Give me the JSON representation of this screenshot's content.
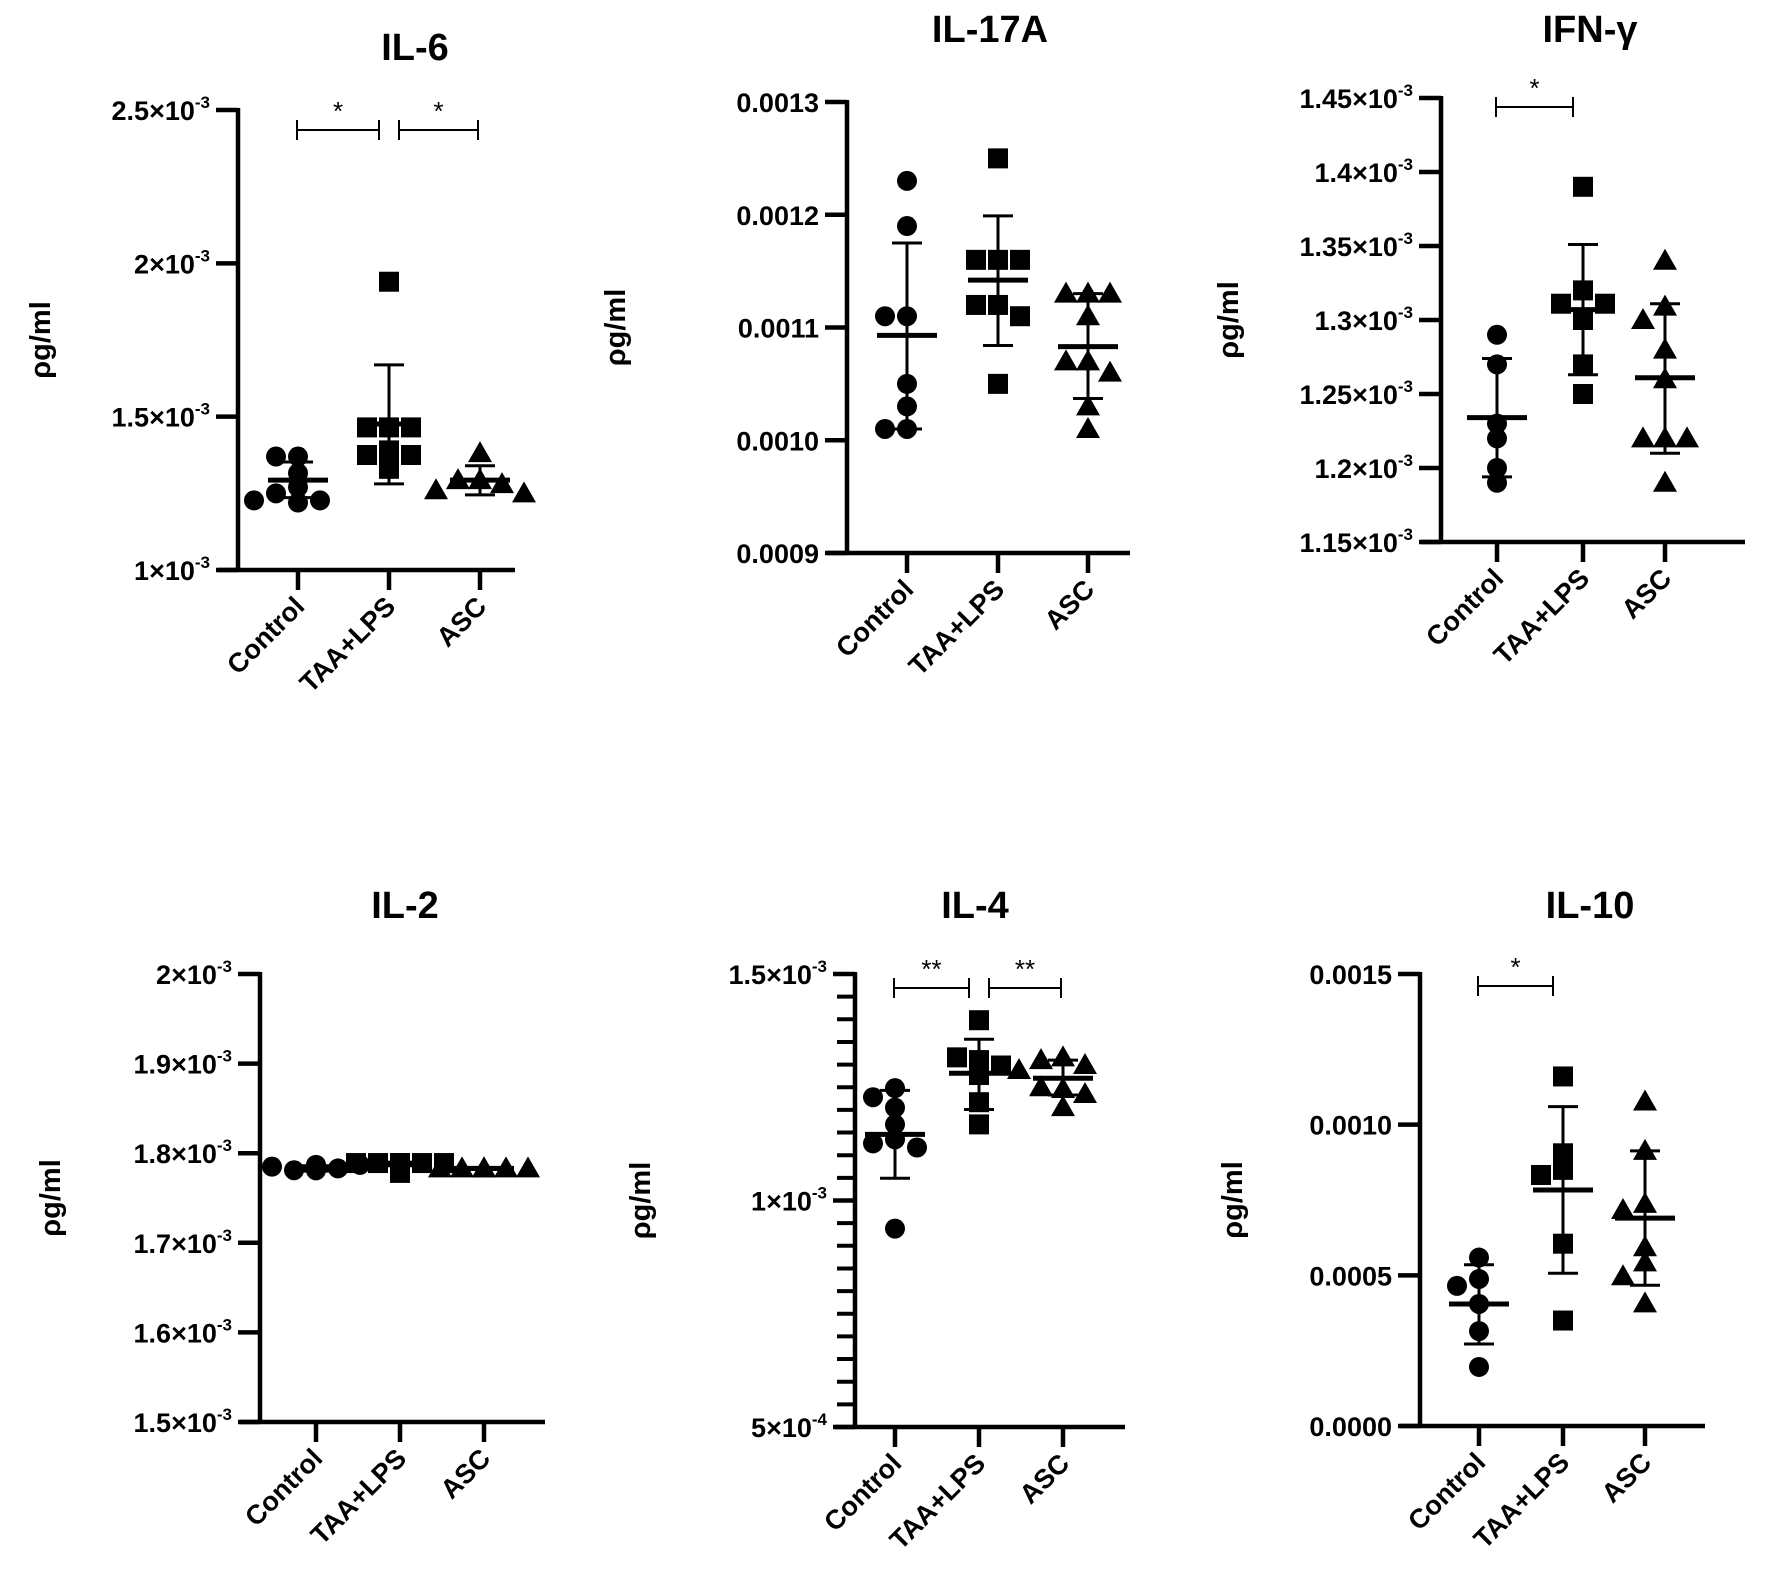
{
  "figure": {
    "groups": [
      "Control",
      "TAA+LPS",
      "ASC"
    ],
    "markers": [
      "circle",
      "square",
      "triangle"
    ],
    "ylabel": "ρg/ml"
  },
  "chart_data": [
    {
      "id": "il6",
      "type": "scatter",
      "title": "IL-6",
      "ylabel": "ρg/ml",
      "xlabel": "",
      "categories": [
        "Control",
        "TAA+LPS",
        "ASC"
      ],
      "ylim": [
        0.001,
        0.0025
      ],
      "yticks": [
        {
          "value": 0.001,
          "base": "1×10",
          "exp": "-3"
        },
        {
          "value": 0.0015,
          "base": "1.5×10",
          "exp": "-3"
        },
        {
          "value": 0.002,
          "base": "2×10",
          "exp": "-3"
        },
        {
          "value": 0.0025,
          "base": "2.5×10",
          "exp": "-3"
        }
      ],
      "minor_ticks": false,
      "series": [
        {
          "name": "Control",
          "marker": "circle",
          "values": [
            0.00137,
            0.00137,
            0.001316,
            0.00127,
            0.00125,
            0.001227,
            0.001227,
            0.00122
          ],
          "mean": 0.001293,
          "sd_upper": 0.001352,
          "sd_lower": 0.001236
        },
        {
          "name": "TAA+LPS",
          "marker": "square",
          "values": [
            0.00194,
            0.001465,
            0.001465,
            0.001465,
            0.00139,
            0.001375,
            0.001375,
            0.00133
          ],
          "mean": 0.001476,
          "sd_upper": 0.001669,
          "sd_lower": 0.001281
        },
        {
          "name": "ASC",
          "marker": "triangle",
          "values": [
            0.001381,
            0.001293,
            0.001293,
            0.00128,
            0.00126,
            0.00125
          ],
          "mean": 0.001293,
          "sd_upper": 0.00134,
          "sd_lower": 0.001245
        }
      ],
      "significance": [
        {
          "from": "Control",
          "to": "TAA+LPS",
          "label": "*"
        },
        {
          "from": "TAA+LPS",
          "to": "ASC",
          "label": "*"
        }
      ]
    },
    {
      "id": "il17a",
      "type": "scatter",
      "title": "IL-17A",
      "ylabel": "ρg/ml",
      "xlabel": "",
      "categories": [
        "Control",
        "TAA+LPS",
        "ASC"
      ],
      "ylim": [
        0.0009,
        0.0013
      ],
      "yticks": [
        {
          "value": 0.0009,
          "base": "0.0009",
          "exp": ""
        },
        {
          "value": 0.001,
          "base": "0.0010",
          "exp": ""
        },
        {
          "value": 0.0011,
          "base": "0.0011",
          "exp": ""
        },
        {
          "value": 0.0012,
          "base": "0.0012",
          "exp": ""
        },
        {
          "value": 0.0013,
          "base": "0.0013",
          "exp": ""
        }
      ],
      "minor_ticks": false,
      "series": [
        {
          "name": "Control",
          "marker": "circle",
          "values": [
            0.00123,
            0.00119,
            0.00111,
            0.00111,
            0.00105,
            0.00103,
            0.00101,
            0.00101
          ],
          "mean": 0.001093,
          "sd_upper": 0.001175,
          "sd_lower": 0.00101
        },
        {
          "name": "TAA+LPS",
          "marker": "square",
          "values": [
            0.00125,
            0.00116,
            0.00116,
            0.00116,
            0.00112,
            0.00112,
            0.00111,
            0.00105
          ],
          "mean": 0.001142,
          "sd_upper": 0.001199,
          "sd_lower": 0.001084
        },
        {
          "name": "ASC",
          "marker": "triangle",
          "values": [
            0.00113,
            0.00113,
            0.00113,
            0.00111,
            0.00107,
            0.00107,
            0.00106,
            0.00103,
            0.00101
          ],
          "mean": 0.001083,
          "sd_upper": 0.00113,
          "sd_lower": 0.001037
        }
      ],
      "significance": []
    },
    {
      "id": "ifng",
      "type": "scatter",
      "title": "IFN-γ",
      "ylabel": "ρg/ml",
      "xlabel": "",
      "categories": [
        "Control",
        "TAA+LPS",
        "ASC"
      ],
      "ylim": [
        0.00115,
        0.00145
      ],
      "yticks": [
        {
          "value": 0.00115,
          "base": "1.15×10",
          "exp": "-3"
        },
        {
          "value": 0.0012,
          "base": "1.2×10",
          "exp": "-3"
        },
        {
          "value": 0.00125,
          "base": "1.25×10",
          "exp": "-3"
        },
        {
          "value": 0.0013,
          "base": "1.3×10",
          "exp": "-3"
        },
        {
          "value": 0.00135,
          "base": "1.35×10",
          "exp": "-3"
        },
        {
          "value": 0.0014,
          "base": "1.4×10",
          "exp": "-3"
        },
        {
          "value": 0.00145,
          "base": "1.45×10",
          "exp": "-3"
        }
      ],
      "minor_ticks": false,
      "series": [
        {
          "name": "Control",
          "marker": "circle",
          "values": [
            0.00129,
            0.00127,
            0.00123,
            0.00122,
            0.0012,
            0.00119
          ],
          "mean": 0.001234,
          "sd_upper": 0.001274,
          "sd_lower": 0.001194
        },
        {
          "name": "TAA+LPS",
          "marker": "square",
          "values": [
            0.00139,
            0.00132,
            0.001311,
            0.001311,
            0.0013,
            0.00127,
            0.00125
          ],
          "mean": 0.001307,
          "sd_upper": 0.001351,
          "sd_lower": 0.001263
        },
        {
          "name": "ASC",
          "marker": "triangle",
          "values": [
            0.00134,
            0.001309,
            0.0013,
            0.00128,
            0.00126,
            0.00122,
            0.00122,
            0.00122,
            0.00119
          ],
          "mean": 0.001261,
          "sd_upper": 0.001311,
          "sd_lower": 0.00121
        }
      ],
      "significance": [
        {
          "from": "Control",
          "to": "TAA+LPS",
          "label": "*"
        }
      ]
    },
    {
      "id": "il2",
      "type": "scatter",
      "title": "IL-2",
      "ylabel": "ρg/ml",
      "xlabel": "",
      "categories": [
        "Control",
        "TAA+LPS",
        "ASC"
      ],
      "ylim": [
        0.0015,
        0.002
      ],
      "yticks": [
        {
          "value": 0.0015,
          "base": "1.5×10",
          "exp": "-3"
        },
        {
          "value": 0.0016,
          "base": "1.6×10",
          "exp": "-3"
        },
        {
          "value": 0.0017,
          "base": "1.7×10",
          "exp": "-3"
        },
        {
          "value": 0.0018,
          "base": "1.8×10",
          "exp": "-3"
        },
        {
          "value": 0.0019,
          "base": "1.9×10",
          "exp": "-3"
        },
        {
          "value": 0.002,
          "base": "2×10",
          "exp": "-3"
        }
      ],
      "minor_ticks": false,
      "series": [
        {
          "name": "Control",
          "marker": "circle",
          "values": [
            0.001781,
            0.001781,
            0.001783,
            0.001785,
            0.001787,
            0.001787,
            0.001783,
            0.001781
          ],
          "mean": 0.001783,
          "sd_upper": 0.001786,
          "sd_lower": 0.00178
        },
        {
          "name": "TAA+LPS",
          "marker": "square",
          "values": [
            0.001789,
            0.001789,
            0.001789,
            0.001789,
            0.001789,
            0.001789,
            0.001778
          ],
          "mean": 0.001788,
          "sd_upper": 0.00179,
          "sd_lower": 0.001786
        },
        {
          "name": "ASC",
          "marker": "triangle",
          "values": [
            0.001783,
            0.001783,
            0.001783,
            0.001783,
            0.001783,
            0.001783
          ],
          "mean": 0.001783,
          "sd_upper": 0.001784,
          "sd_lower": 0.001782
        }
      ],
      "significance": []
    },
    {
      "id": "il4",
      "type": "scatter",
      "title": "IL-4",
      "ylabel": "ρg/ml",
      "xlabel": "",
      "categories": [
        "Control",
        "TAA+LPS",
        "ASC"
      ],
      "ylim": [
        0.0005,
        0.0015
      ],
      "yticks": [
        {
          "value": 0.0005,
          "base": "5×10",
          "exp": "-4"
        },
        {
          "value": 0.001,
          "base": "1×10",
          "exp": "-3"
        },
        {
          "value": 0.0015,
          "base": "1.5×10",
          "exp": "-3"
        }
      ],
      "minor_ticks": true,
      "minor_step": 5e-05,
      "series": [
        {
          "name": "Control",
          "marker": "circle",
          "values": [
            0.001248,
            0.001228,
            0.001205,
            0.001168,
            0.001135,
            0.001126,
            0.001117,
            0.000938
          ],
          "mean": 0.001146,
          "sd_upper": 0.001243,
          "sd_lower": 0.001049
        },
        {
          "name": "TAA+LPS",
          "marker": "square",
          "values": [
            0.001398,
            0.00131,
            0.001316,
            0.001298,
            0.001277,
            0.001217,
            0.001168
          ],
          "mean": 0.001281,
          "sd_upper": 0.001356,
          "sd_lower": 0.001201
        },
        {
          "name": "ASC",
          "marker": "triangle",
          "values": [
            0.001316,
            0.00131,
            0.001299,
            0.001288,
            0.001246,
            0.00125,
            0.001235,
            0.001206
          ],
          "mean": 0.00127,
          "sd_upper": 0.00131,
          "sd_lower": 0.001233
        }
      ],
      "significance": [
        {
          "from": "Control",
          "to": "TAA+LPS",
          "label": "**"
        },
        {
          "from": "TAA+LPS",
          "to": "ASC",
          "label": "**"
        }
      ]
    },
    {
      "id": "il10",
      "type": "scatter",
      "title": "IL-10",
      "ylabel": "ρg/ml",
      "xlabel": "",
      "categories": [
        "Control",
        "TAA+LPS",
        "ASC"
      ],
      "ylim": [
        0.0,
        0.0015
      ],
      "yticks": [
        {
          "value": 0.0,
          "base": "0.0000",
          "exp": ""
        },
        {
          "value": 0.0005,
          "base": "0.0005",
          "exp": ""
        },
        {
          "value": 0.001,
          "base": "0.0010",
          "exp": ""
        },
        {
          "value": 0.0015,
          "base": "0.0015",
          "exp": ""
        }
      ],
      "minor_ticks": false,
      "series": [
        {
          "name": "Control",
          "marker": "circle",
          "values": [
            0.000559,
            0.000488,
            0.000465,
            0.000405,
            0.000315,
            0.000196
          ],
          "mean": 0.000405,
          "sd_upper": 0.000535,
          "sd_lower": 0.000272
        },
        {
          "name": "TAA+LPS",
          "marker": "square",
          "values": [
            0.00116,
            0.000905,
            0.00085,
            0.000833,
            0.000605,
            0.00035
          ],
          "mean": 0.000783,
          "sd_upper": 0.00106,
          "sd_lower": 0.000507
        },
        {
          "name": "ASC",
          "marker": "triangle",
          "values": [
            0.001077,
            0.000913,
            0.000737,
            0.000717,
            0.000593,
            0.000543,
            0.000497,
            0.000407
          ],
          "mean": 0.00069,
          "sd_upper": 0.000913,
          "sd_lower": 0.000467
        }
      ],
      "significance": [
        {
          "from": "Control",
          "to": "TAA+LPS",
          "label": "*"
        }
      ]
    }
  ]
}
